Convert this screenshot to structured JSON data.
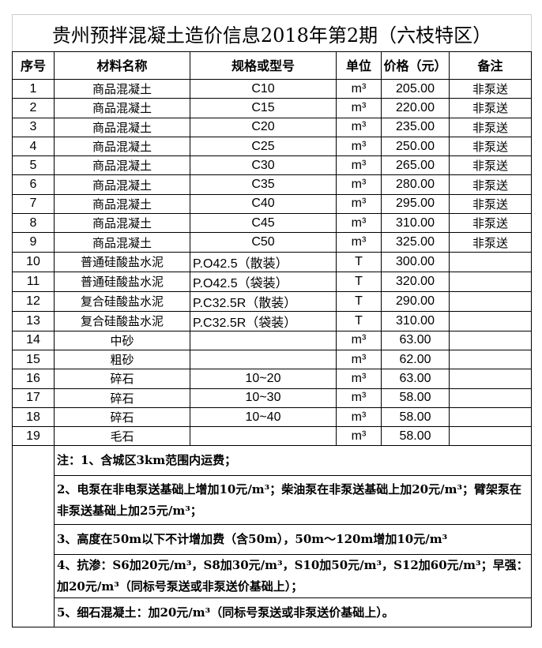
{
  "title": "贵州预拌混凝土造价信息2018年第2期（六枝特区）",
  "headers": [
    "序号",
    "材料名称",
    "规格或型号",
    "单位",
    "价格（元）",
    "备注"
  ],
  "rows": [
    [
      "1",
      "商品混凝土",
      "C10",
      "m³",
      "205.00",
      "非泵送"
    ],
    [
      "2",
      "商品混凝土",
      "C15",
      "m³",
      "220.00",
      "非泵送"
    ],
    [
      "3",
      "商品混凝土",
      "C20",
      "m³",
      "235.00",
      "非泵送"
    ],
    [
      "4",
      "商品混凝土",
      "C25",
      "m³",
      "250.00",
      "非泵送"
    ],
    [
      "5",
      "商品混凝土",
      "C30",
      "m³",
      "265.00",
      "非泵送"
    ],
    [
      "6",
      "商品混凝土",
      "C35",
      "m³",
      "280.00",
      "非泵送"
    ],
    [
      "7",
      "商品混凝土",
      "C40",
      "m³",
      "295.00",
      "非泵送"
    ],
    [
      "8",
      "商品混凝土",
      "C45",
      "m³",
      "310.00",
      "非泵送"
    ],
    [
      "9",
      "商品混凝土",
      "C50",
      "m³",
      "325.00",
      "非泵送"
    ],
    [
      "10",
      "普通硅酸盐水泥",
      "P.O42.5（散装）",
      "T",
      "300.00",
      ""
    ],
    [
      "11",
      "普通硅酸盐水泥",
      "P.O42.5（袋装）",
      "T",
      "320.00",
      ""
    ],
    [
      "12",
      "复合硅酸盐水泥",
      "P.C32.5R（散装）",
      "T",
      "290.00",
      ""
    ],
    [
      "13",
      "复合硅酸盐水泥",
      "P.C32.5R（袋装）",
      "T",
      "310.00",
      ""
    ],
    [
      "14",
      "中砂",
      "",
      "m³",
      "63.00",
      ""
    ],
    [
      "15",
      "粗砂",
      "",
      "m³",
      "62.00",
      ""
    ],
    [
      "16",
      "碎石",
      "10~20",
      "m³",
      "63.00",
      ""
    ],
    [
      "17",
      "碎石",
      "10~30",
      "m³",
      "58.00",
      ""
    ],
    [
      "18",
      "碎石",
      "10~40",
      "m³",
      "58.00",
      ""
    ],
    [
      "19",
      "毛石",
      "",
      "m³",
      "58.00",
      ""
    ]
  ],
  "notes": [
    "注：1、含城区3km范围内运费；",
    "2、电泵在非电泵送基础上增加10元/m³；柴油泵在非泵送基础上加20元/m³；臂架泵在非泵送基础上加25元/m³；",
    "3、高度在50m以下不计增加费（含50m），50m～120m增加10元/m³",
    "4、抗渗：S6加20元/m³，S8加30元/m³，S10加50元/m³，S12加60元/m³；早强：加20元/m³（同标号泵送或非泵送价基础上）；",
    "5、细石混凝土：加20元/m³（同标号泵送或非泵送价基础上）。"
  ]
}
